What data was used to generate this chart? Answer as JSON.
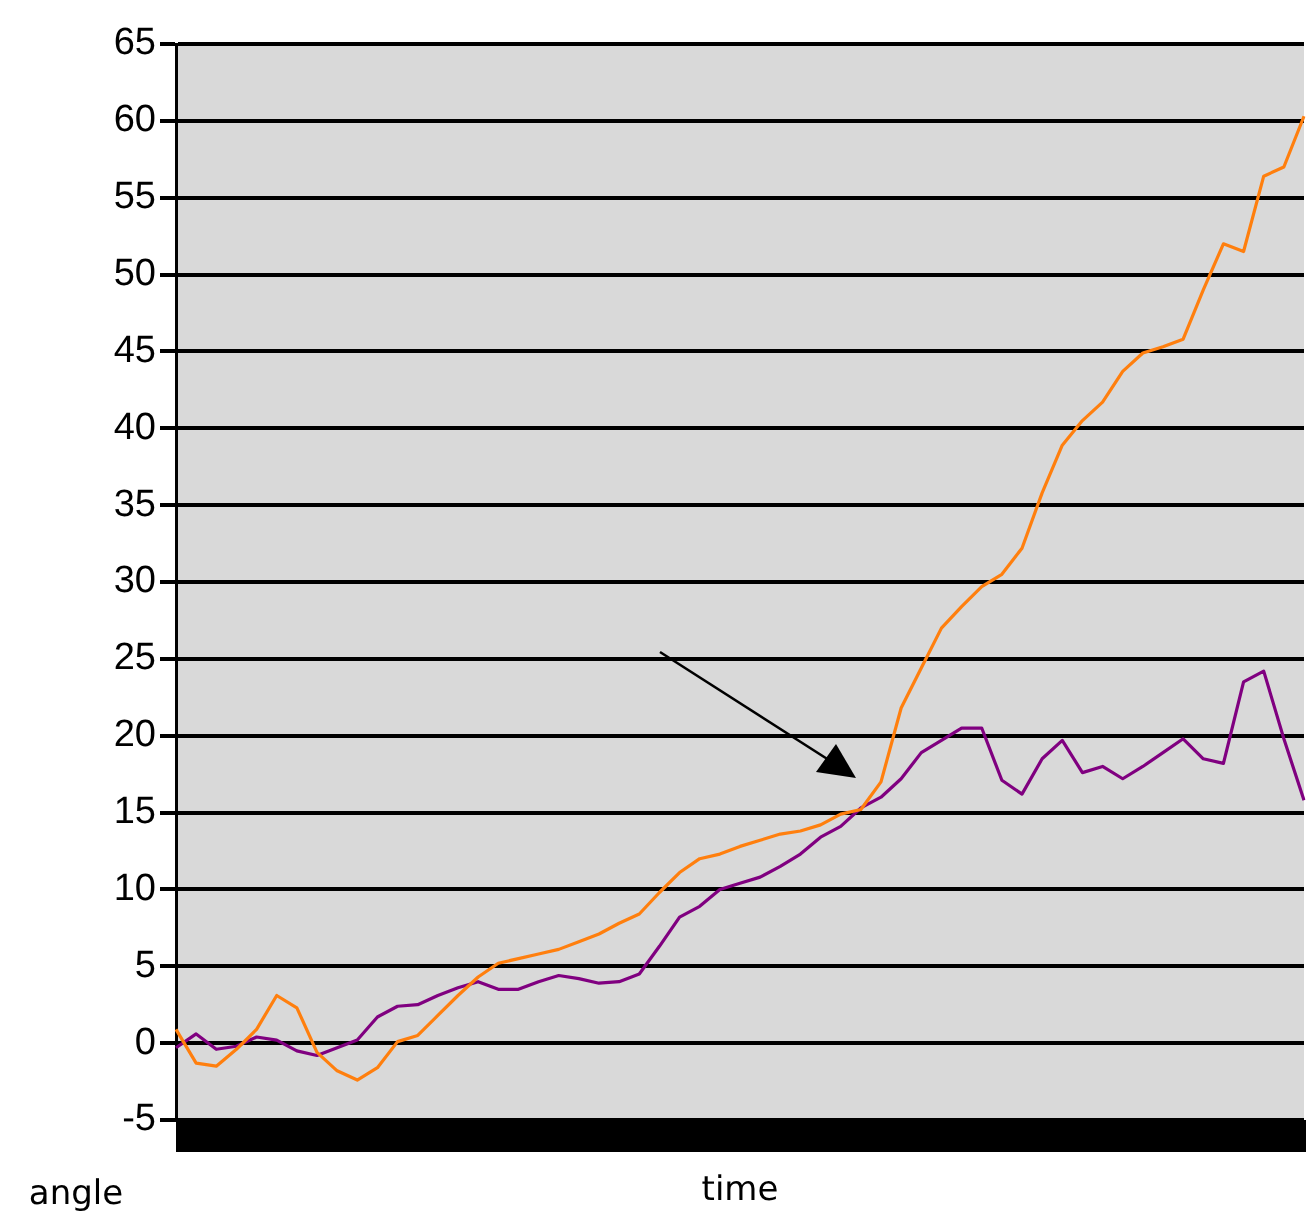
{
  "chart_data": {
    "type": "line",
    "xlabel": "time",
    "annotations": [
      "angle"
    ],
    "categories": [
      null,
      null,
      null,
      null,
      null,
      null,
      null,
      null,
      null,
      null,
      null,
      null,
      null,
      null,
      null,
      null,
      null,
      null,
      null,
      null,
      null,
      null,
      null,
      null,
      null,
      null,
      null,
      null,
      null,
      null,
      null,
      null,
      null,
      null,
      null,
      null,
      null,
      null,
      null,
      null,
      null,
      null,
      null,
      null,
      null,
      null,
      null,
      null,
      null,
      null,
      null,
      null,
      null,
      null,
      null,
      null,
      null
    ],
    "series": [
      {
        "color": "#ff7f0e",
        "values": [
          0.9,
          -1.3,
          -1.5,
          -0.4,
          0.9,
          3.1,
          2.3,
          -0.6,
          -1.8,
          -2.4,
          -1.6,
          0.1,
          0.5,
          1.8,
          3.1,
          4.3,
          5.2,
          5.5,
          5.8,
          6.1,
          6.6,
          7.1,
          7.8,
          8.4,
          9.8,
          11.1,
          12,
          12.3,
          12.8,
          13.2,
          13.6,
          13.8,
          14.2,
          14.9,
          15.2,
          17,
          21.8,
          24.4,
          27,
          28.4,
          29.7,
          30.5,
          32.2,
          35.8,
          38.9,
          40.5,
          41.7,
          43.7,
          44.9,
          45.3,
          45.8,
          49,
          52,
          51.5,
          56.4,
          57,
          60.3
        ]
      },
      {
        "color": "#800080",
        "values": [
          -0.3,
          0.6,
          -0.4,
          -0.2,
          0.4,
          0.2,
          -0.5,
          -0.8,
          -0.3,
          0.2,
          1.7,
          2.4,
          2.5,
          3.1,
          3.6,
          4,
          3.5,
          3.5,
          4,
          4.4,
          4.2,
          3.9,
          4,
          4.5,
          6.3,
          8.2,
          8.9,
          10,
          10.4,
          10.8,
          11.5,
          12.3,
          13.4,
          14.1,
          15.3,
          16,
          17.2,
          18.9,
          19.7,
          20.5,
          20.5,
          17.1,
          16.2,
          18.5,
          19.7,
          17.6,
          18,
          17.2,
          18,
          18.9,
          19.8,
          18.5,
          18.2,
          23.5,
          24.2,
          19.8,
          15.8
        ]
      }
    ],
    "ylim": [
      -5,
      65
    ],
    "yticks": [
      -5,
      0,
      5,
      10,
      15,
      20,
      25,
      30,
      35,
      40,
      45,
      50,
      55,
      60,
      65
    ],
    "grid": "y",
    "legend": false,
    "marker": "none",
    "line_style": "solid",
    "tick_labels": "y"
  }
}
